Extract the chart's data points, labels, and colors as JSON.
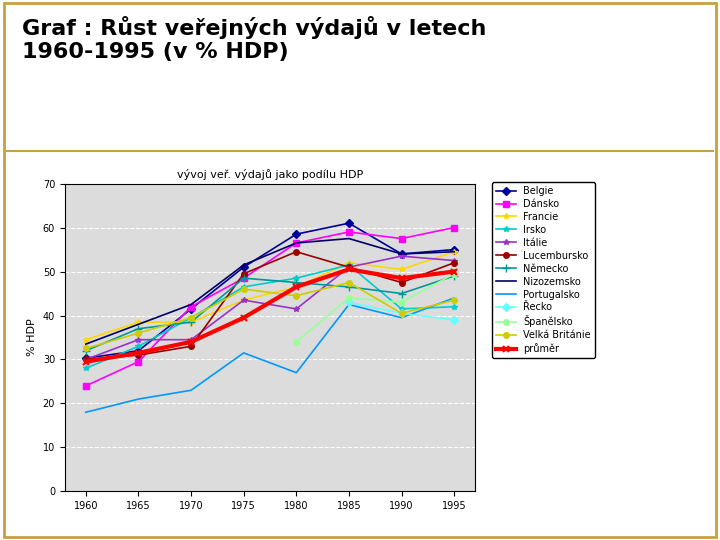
{
  "title_main": "Graf : Růst veřejných výdajů v letech\n1960-1995 (v % HDP)",
  "chart_title": "vývoj veř. výdajů jako podílu HDP",
  "ylabel": "% HDP",
  "years": [
    1960,
    1965,
    1970,
    1975,
    1980,
    1985,
    1990,
    1995
  ],
  "series": {
    "Belgie": [
      30.3,
      32.0,
      41.5,
      51.0,
      58.5,
      61.0,
      54.0,
      55.0
    ],
    "Dánsko": [
      24.0,
      29.5,
      42.0,
      48.5,
      56.5,
      59.0,
      57.5,
      60.0
    ],
    "Francie": [
      34.5,
      38.5,
      38.5,
      43.5,
      46.5,
      52.0,
      50.5,
      54.5
    ],
    "Irsko": [
      28.0,
      33.0,
      39.5,
      46.5,
      48.5,
      51.5,
      41.5,
      42.0
    ],
    "Itálie": [
      30.0,
      34.5,
      34.5,
      43.5,
      41.5,
      51.0,
      53.5,
      52.5
    ],
    "Lucembursko": [
      30.0,
      31.0,
      33.0,
      49.5,
      54.5,
      51.0,
      47.5,
      52.0
    ],
    "Německo": [
      32.0,
      37.0,
      38.5,
      48.5,
      47.5,
      46.5,
      45.0,
      49.0
    ],
    "Nizozemsko": [
      33.5,
      38.0,
      42.5,
      51.5,
      56.5,
      57.5,
      54.0,
      54.5
    ],
    "Portugalsko": [
      18.0,
      21.0,
      23.0,
      31.5,
      27.0,
      42.5,
      39.5,
      44.0
    ],
    "Řecko": [
      null,
      null,
      null,
      null,
      null,
      43.0,
      40.5,
      39.0
    ],
    "Španělsko": [
      null,
      null,
      null,
      null,
      34.0,
      44.0,
      43.0,
      49.5
    ],
    "Velká Británie": [
      32.5,
      36.0,
      39.5,
      46.0,
      44.5,
      47.5,
      40.5,
      43.5
    ],
    "průměr": [
      29.5,
      31.5,
      34.0,
      39.5,
      46.5,
      50.5,
      48.5,
      50.0
    ]
  },
  "colors": {
    "Belgie": "#000099",
    "Dánsko": "#FF00FF",
    "Francie": "#FFD700",
    "Irsko": "#00CCCC",
    "Itálie": "#9933CC",
    "Lucembursko": "#990000",
    "Německo": "#009999",
    "Nizozemsko": "#000066",
    "Portugalsko": "#0099FF",
    "Řecko": "#66FFFF",
    "Španělsko": "#99FF99",
    "Velká Británie": "#CCCC00",
    "průměr": "#FF0000"
  },
  "markers": {
    "Belgie": "D",
    "Dánsko": "s",
    "Francie": "*",
    "Irsko": "*",
    "Itálie": "*",
    "Lucembursko": "o",
    "Německo": "+",
    "Nizozemsko": "None",
    "Portugalsko": "None",
    "Řecko": "D",
    "Španělsko": "o",
    "Velká Británie": "o",
    "průměr": "x"
  },
  "linewidths": {
    "Belgie": 1.2,
    "Dánsko": 1.2,
    "Francie": 1.2,
    "Irsko": 1.2,
    "Itálie": 1.2,
    "Lucembursko": 1.2,
    "Německo": 1.2,
    "Nizozemsko": 1.2,
    "Portugalsko": 1.2,
    "Řecko": 1.2,
    "Španělsko": 1.2,
    "Velká Británie": 1.2,
    "průměr": 3.0
  },
  "ylim": [
    0,
    70
  ],
  "yticks": [
    0,
    10,
    20,
    30,
    40,
    50,
    60,
    70
  ],
  "plot_bg": "#DCDCDC",
  "outer_bg": "#FFFFFF",
  "header_bg": "#FFFFFF",
  "border_color": "#C8A040"
}
